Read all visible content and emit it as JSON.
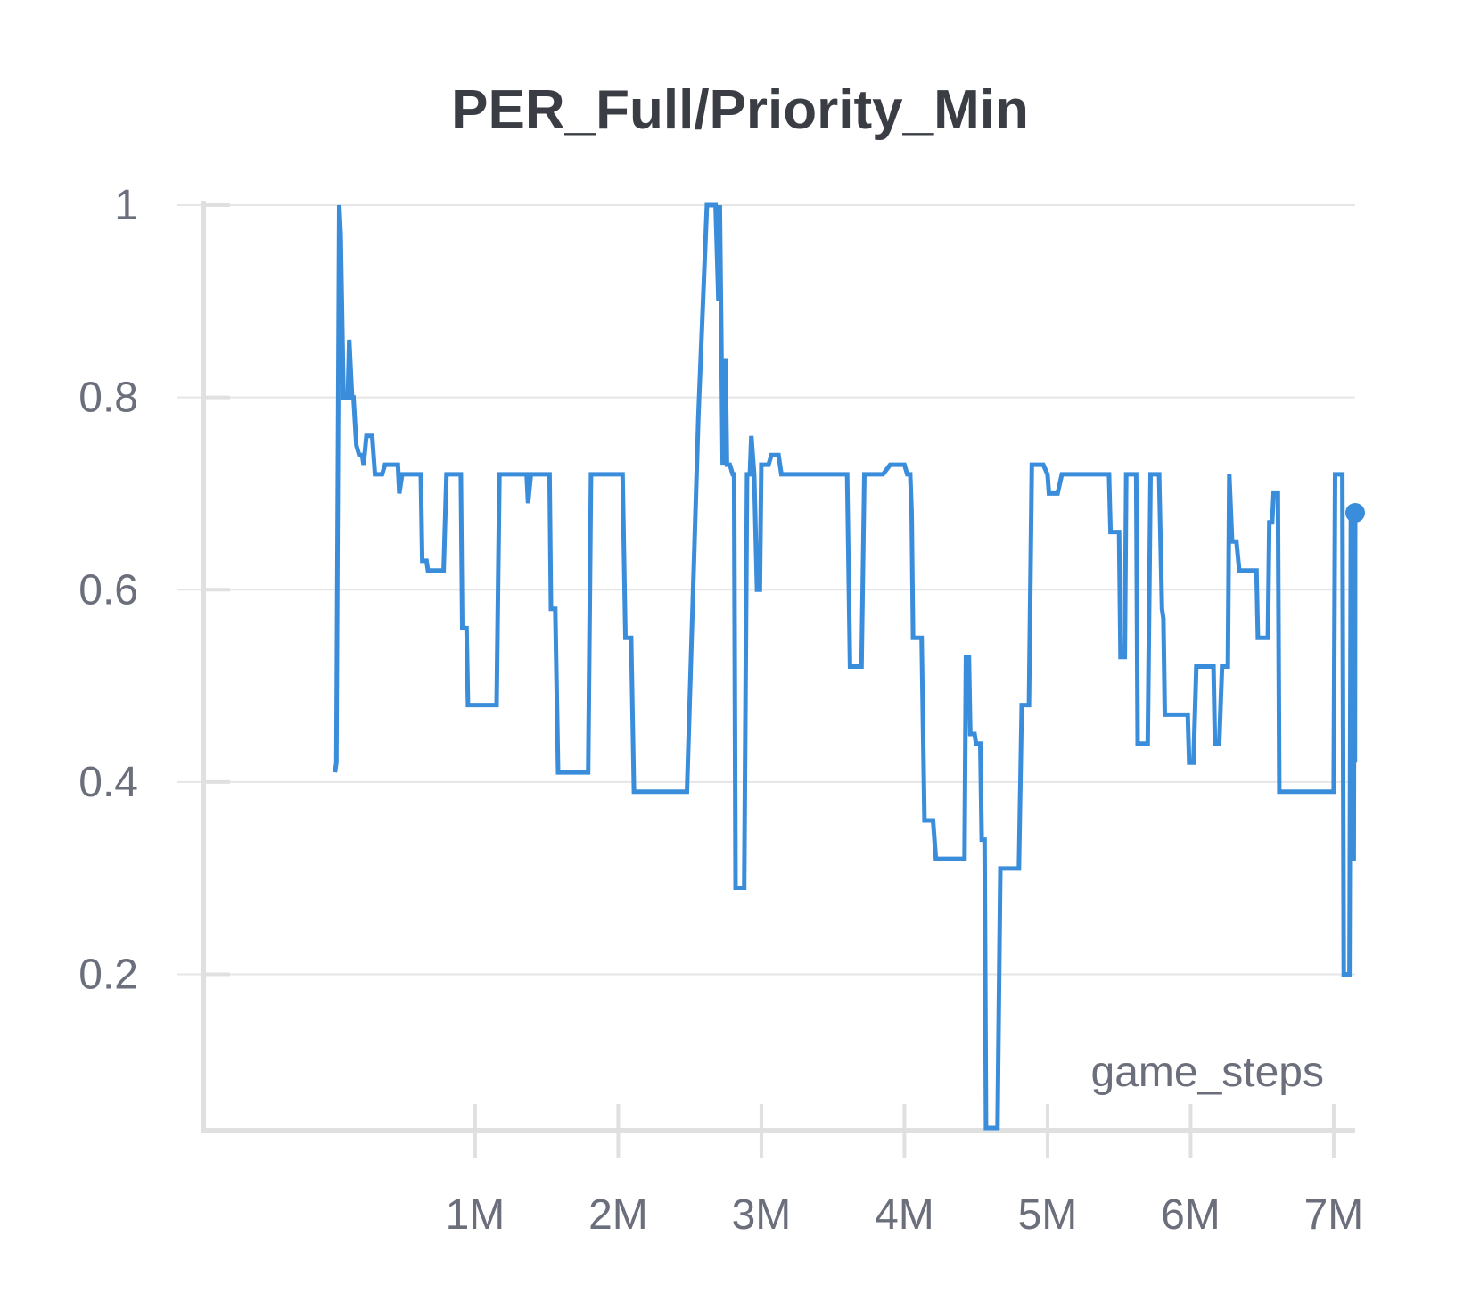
{
  "chart_data": {
    "type": "line",
    "title": "PER_Full/Priority_Min",
    "xlabel": "game_steps",
    "ylabel": "",
    "xlim": [
      -0.9,
      7.15
    ],
    "ylim": [
      0.04,
      1.0
    ],
    "x_unit": "millions of game_steps",
    "xticks": [
      1,
      2,
      3,
      4,
      5,
      6,
      7
    ],
    "xtick_labels": [
      "1M",
      "2M",
      "3M",
      "4M",
      "5M",
      "6M",
      "7M"
    ],
    "yticks": [
      0.2,
      0.4,
      0.6,
      0.8,
      1.0
    ],
    "ytick_labels": [
      "0.2",
      "0.4",
      "0.6",
      "0.8",
      "1"
    ],
    "grid": true,
    "colors": {
      "line": "#3a8ddb",
      "grid": "#e6e6e6",
      "axis": "#e0e0e0",
      "text": "#6b6e7b",
      "title": "#3a3d44"
    },
    "series": [
      {
        "points": [
          [
            0.02,
            0.41
          ],
          [
            0.03,
            0.42
          ],
          [
            0.05,
            1.0
          ],
          [
            0.06,
            0.97
          ],
          [
            0.08,
            0.8
          ],
          [
            0.11,
            0.8
          ],
          [
            0.12,
            0.86
          ],
          [
            0.14,
            0.8
          ],
          [
            0.15,
            0.8
          ],
          [
            0.17,
            0.75
          ],
          [
            0.19,
            0.74
          ],
          [
            0.21,
            0.74
          ],
          [
            0.22,
            0.73
          ],
          [
            0.24,
            0.76
          ],
          [
            0.26,
            0.76
          ],
          [
            0.28,
            0.76
          ],
          [
            0.3,
            0.72
          ],
          [
            0.32,
            0.72
          ],
          [
            0.35,
            0.72
          ],
          [
            0.37,
            0.73
          ],
          [
            0.41,
            0.73
          ],
          [
            0.43,
            0.73
          ],
          [
            0.46,
            0.73
          ],
          [
            0.47,
            0.7
          ],
          [
            0.49,
            0.72
          ],
          [
            0.55,
            0.72
          ],
          [
            0.6,
            0.72
          ],
          [
            0.62,
            0.72
          ],
          [
            0.63,
            0.63
          ],
          [
            0.66,
            0.63
          ],
          [
            0.67,
            0.62
          ],
          [
            0.73,
            0.62
          ],
          [
            0.78,
            0.62
          ],
          [
            0.8,
            0.72
          ],
          [
            0.86,
            0.72
          ],
          [
            0.87,
            0.72
          ],
          [
            0.9,
            0.72
          ],
          [
            0.91,
            0.56
          ],
          [
            0.94,
            0.56
          ],
          [
            0.95,
            0.48
          ],
          [
            1.02,
            0.48
          ],
          [
            1.15,
            0.48
          ],
          [
            1.17,
            0.72
          ],
          [
            1.32,
            0.72
          ],
          [
            1.36,
            0.72
          ],
          [
            1.37,
            0.69
          ],
          [
            1.39,
            0.72
          ],
          [
            1.42,
            0.72
          ],
          [
            1.5,
            0.72
          ],
          [
            1.52,
            0.72
          ],
          [
            1.53,
            0.58
          ],
          [
            1.56,
            0.58
          ],
          [
            1.58,
            0.41
          ],
          [
            1.7,
            0.41
          ],
          [
            1.79,
            0.41
          ],
          [
            1.81,
            0.72
          ],
          [
            1.83,
            0.72
          ],
          [
            1.9,
            0.72
          ],
          [
            1.93,
            0.72
          ],
          [
            2.0,
            0.72
          ],
          [
            2.03,
            0.72
          ],
          [
            2.05,
            0.55
          ],
          [
            2.09,
            0.55
          ],
          [
            2.11,
            0.39
          ],
          [
            2.3,
            0.39
          ],
          [
            2.48,
            0.39
          ],
          [
            2.56,
            0.78
          ],
          [
            2.62,
            1.0
          ],
          [
            2.68,
            1.0
          ],
          [
            2.7,
            0.9
          ],
          [
            2.71,
            1.0
          ],
          [
            2.73,
            0.73
          ],
          [
            2.75,
            0.84
          ],
          [
            2.76,
            0.73
          ],
          [
            2.78,
            0.73
          ],
          [
            2.8,
            0.72
          ],
          [
            2.81,
            0.72
          ],
          [
            2.82,
            0.29
          ],
          [
            2.88,
            0.29
          ],
          [
            2.9,
            0.72
          ],
          [
            2.92,
            0.72
          ],
          [
            2.93,
            0.76
          ],
          [
            2.95,
            0.72
          ],
          [
            2.97,
            0.6
          ],
          [
            2.99,
            0.6
          ],
          [
            3.0,
            0.73
          ],
          [
            3.05,
            0.73
          ],
          [
            3.07,
            0.74
          ],
          [
            3.12,
            0.74
          ],
          [
            3.14,
            0.72
          ],
          [
            3.17,
            0.72
          ],
          [
            3.2,
            0.72
          ],
          [
            3.3,
            0.72
          ],
          [
            3.35,
            0.72
          ],
          [
            3.5,
            0.72
          ],
          [
            3.6,
            0.72
          ],
          [
            3.62,
            0.52
          ],
          [
            3.68,
            0.52
          ],
          [
            3.7,
            0.52
          ],
          [
            3.72,
            0.72
          ],
          [
            3.75,
            0.72
          ],
          [
            3.85,
            0.72
          ],
          [
            3.9,
            0.73
          ],
          [
            3.97,
            0.73
          ],
          [
            4.0,
            0.73
          ],
          [
            4.02,
            0.72
          ],
          [
            4.04,
            0.72
          ],
          [
            4.05,
            0.68
          ],
          [
            4.06,
            0.55
          ],
          [
            4.12,
            0.55
          ],
          [
            4.14,
            0.36
          ],
          [
            4.2,
            0.36
          ],
          [
            4.22,
            0.32
          ],
          [
            4.35,
            0.32
          ],
          [
            4.42,
            0.32
          ],
          [
            4.43,
            0.53
          ],
          [
            4.45,
            0.53
          ],
          [
            4.46,
            0.45
          ],
          [
            4.49,
            0.45
          ],
          [
            4.5,
            0.44
          ],
          [
            4.53,
            0.44
          ],
          [
            4.54,
            0.34
          ],
          [
            4.56,
            0.34
          ],
          [
            4.57,
            0.04
          ],
          [
            4.65,
            0.04
          ],
          [
            4.67,
            0.31
          ],
          [
            4.72,
            0.31
          ],
          [
            4.8,
            0.31
          ],
          [
            4.82,
            0.48
          ],
          [
            4.87,
            0.48
          ],
          [
            4.89,
            0.73
          ],
          [
            4.97,
            0.73
          ],
          [
            5.0,
            0.72
          ],
          [
            5.01,
            0.7
          ],
          [
            5.07,
            0.7
          ],
          [
            5.1,
            0.72
          ],
          [
            5.2,
            0.72
          ],
          [
            5.3,
            0.72
          ],
          [
            5.35,
            0.72
          ],
          [
            5.43,
            0.72
          ],
          [
            5.44,
            0.66
          ],
          [
            5.5,
            0.66
          ],
          [
            5.51,
            0.53
          ],
          [
            5.54,
            0.53
          ],
          [
            5.55,
            0.72
          ],
          [
            5.6,
            0.72
          ],
          [
            5.62,
            0.72
          ],
          [
            5.63,
            0.44
          ],
          [
            5.7,
            0.44
          ],
          [
            5.72,
            0.72
          ],
          [
            5.78,
            0.72
          ],
          [
            5.8,
            0.58
          ],
          [
            5.81,
            0.57
          ],
          [
            5.82,
            0.47
          ],
          [
            5.95,
            0.47
          ],
          [
            5.98,
            0.47
          ],
          [
            5.99,
            0.42
          ],
          [
            6.02,
            0.42
          ],
          [
            6.04,
            0.52
          ],
          [
            6.14,
            0.52
          ],
          [
            6.16,
            0.52
          ],
          [
            6.17,
            0.44
          ],
          [
            6.2,
            0.44
          ],
          [
            6.22,
            0.52
          ],
          [
            6.26,
            0.52
          ],
          [
            6.27,
            0.72
          ],
          [
            6.29,
            0.65
          ],
          [
            6.32,
            0.65
          ],
          [
            6.34,
            0.62
          ],
          [
            6.46,
            0.62
          ],
          [
            6.47,
            0.55
          ],
          [
            6.54,
            0.55
          ],
          [
            6.55,
            0.67
          ],
          [
            6.57,
            0.67
          ],
          [
            6.58,
            0.7
          ],
          [
            6.61,
            0.7
          ],
          [
            6.62,
            0.39
          ],
          [
            6.78,
            0.39
          ],
          [
            6.9,
            0.39
          ],
          [
            7.0,
            0.39
          ],
          [
            7.01,
            0.72
          ],
          [
            7.05,
            0.72
          ],
          [
            7.06,
            0.72
          ],
          [
            7.07,
            0.2
          ],
          [
            7.1,
            0.2
          ],
          [
            7.11,
            0.2
          ],
          [
            7.12,
            0.68
          ],
          [
            7.13,
            0.32
          ],
          [
            7.14,
            0.32
          ],
          [
            7.145,
            0.64
          ],
          [
            7.148,
            0.42
          ],
          [
            7.15,
            0.68
          ]
        ]
      }
    ]
  }
}
